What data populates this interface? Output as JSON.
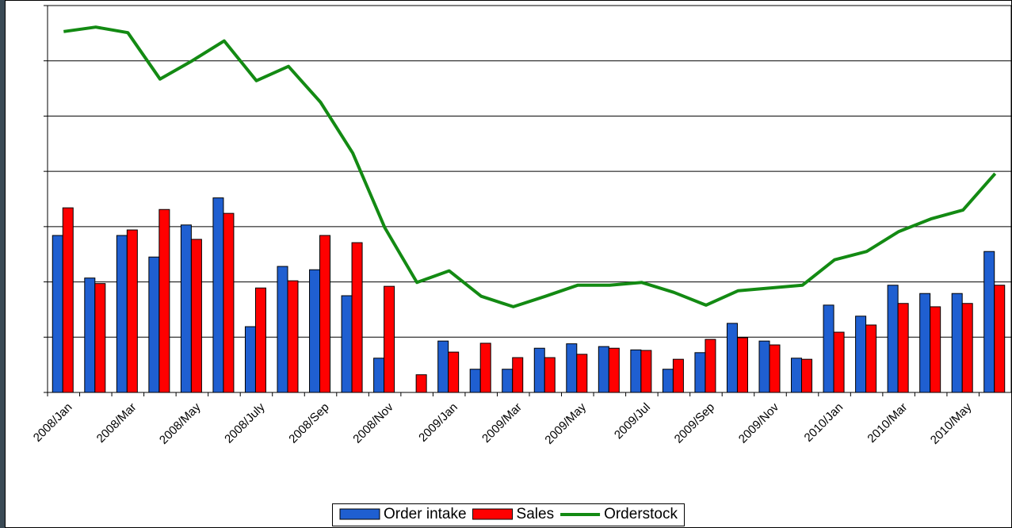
{
  "chart_data": {
    "type": "bar-line",
    "categories": [
      "2008/Jan",
      null,
      "2008/Mar",
      null,
      "2008/May",
      null,
      "2008/July",
      null,
      "2008/Sep",
      null,
      "2008/Nov",
      null,
      "2009/Jan",
      null,
      "2009/Mar",
      null,
      "2009/May",
      null,
      "2009/Jul",
      null,
      "2009/Sep",
      null,
      "2009/Nov",
      null,
      "2010/Jan",
      null,
      "2010/Mar",
      null,
      "2010/May",
      null
    ],
    "series": [
      {
        "name": "Order intake",
        "type": "bar",
        "color": "#1f5fd1",
        "values": [
          2.84,
          2.07,
          2.84,
          2.45,
          3.03,
          3.52,
          1.19,
          2.28,
          2.22,
          1.75,
          0.62,
          0,
          0.93,
          0.42,
          0.42,
          0.8,
          0.88,
          0.83,
          0.77,
          0.42,
          0.72,
          1.25,
          0.93,
          0.62,
          1.58,
          1.38,
          1.94,
          1.79,
          1.79,
          2.55
        ]
      },
      {
        "name": "Sales",
        "type": "bar",
        "color": "#ff0000",
        "values": [
          3.34,
          1.97,
          2.94,
          3.31,
          2.77,
          3.24,
          1.89,
          2.02,
          2.84,
          2.71,
          1.92,
          0.32,
          0.73,
          0.89,
          0.63,
          0.63,
          0.69,
          0.8,
          0.76,
          0.6,
          0.96,
          0.99,
          0.86,
          0.6,
          1.09,
          1.22,
          1.61,
          1.55,
          1.61,
          1.94
        ]
      },
      {
        "name": "Orderstock",
        "type": "line",
        "color": "#138a13",
        "values": [
          6.53,
          6.61,
          6.51,
          5.67,
          6.0,
          6.36,
          5.64,
          5.9,
          5.25,
          4.33,
          2.98,
          1.99,
          2.2,
          1.74,
          1.55,
          1.74,
          1.94,
          1.94,
          1.99,
          1.81,
          1.58,
          1.84,
          1.89,
          1.94,
          2.4,
          2.55,
          2.91,
          3.14,
          3.3,
          3.96
        ]
      }
    ],
    "ylim": [
      0,
      7
    ],
    "yticks": [
      0,
      1,
      2,
      3,
      4,
      5,
      6,
      7
    ],
    "grid": true,
    "legend": "bottom"
  }
}
